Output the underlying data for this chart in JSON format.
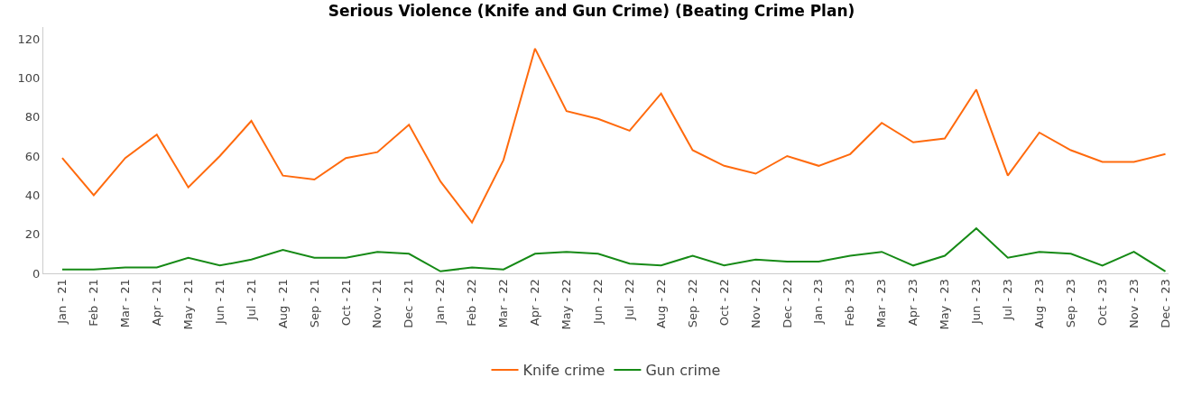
{
  "chart_data": {
    "type": "line",
    "title": "Serious Violence (Knife and Gun Crime) (Beating Crime Plan)",
    "categories": [
      "Jan - 21",
      "Feb - 21",
      "Mar - 21",
      "Apr - 21",
      "May - 21",
      "Jun - 21",
      "Jul - 21",
      "Aug - 21",
      "Sep - 21",
      "Oct - 21",
      "Nov - 21",
      "Dec - 21",
      "Jan - 22",
      "Feb - 22",
      "Mar - 22",
      "Apr - 22",
      "May - 22",
      "Jun - 22",
      "Jul - 22",
      "Aug - 22",
      "Sep - 22",
      "Oct - 22",
      "Nov - 22",
      "Dec - 22",
      "Jan - 23",
      "Feb - 23",
      "Mar - 23",
      "Apr - 23",
      "May - 23",
      "Jun - 23",
      "Jul - 23",
      "Aug - 23",
      "Sep - 23",
      "Oct - 23",
      "Nov - 23",
      "Dec - 23"
    ],
    "series": [
      {
        "name": "Knife crime",
        "color": "#ff6a0d",
        "values": [
          59,
          40,
          59,
          71,
          44,
          60,
          78,
          50,
          48,
          59,
          62,
          76,
          47,
          26,
          58,
          115,
          83,
          79,
          73,
          92,
          63,
          55,
          51,
          60,
          55,
          61,
          77,
          67,
          69,
          94,
          50,
          72,
          63,
          57,
          57,
          61
        ]
      },
      {
        "name": "Gun crime",
        "color": "#168a16",
        "values": [
          2,
          2,
          3,
          3,
          8,
          4,
          7,
          12,
          8,
          8,
          11,
          10,
          1,
          3,
          2,
          10,
          11,
          10,
          5,
          4,
          9,
          4,
          7,
          6,
          6,
          9,
          11,
          4,
          9,
          23,
          8,
          11,
          10,
          4,
          11,
          1
        ]
      }
    ],
    "ylim": [
      0,
      126
    ],
    "yticks": [
      0,
      20,
      40,
      60,
      80,
      100,
      120
    ],
    "legend": "bottom",
    "marker": "none",
    "line_style": "solid"
  }
}
